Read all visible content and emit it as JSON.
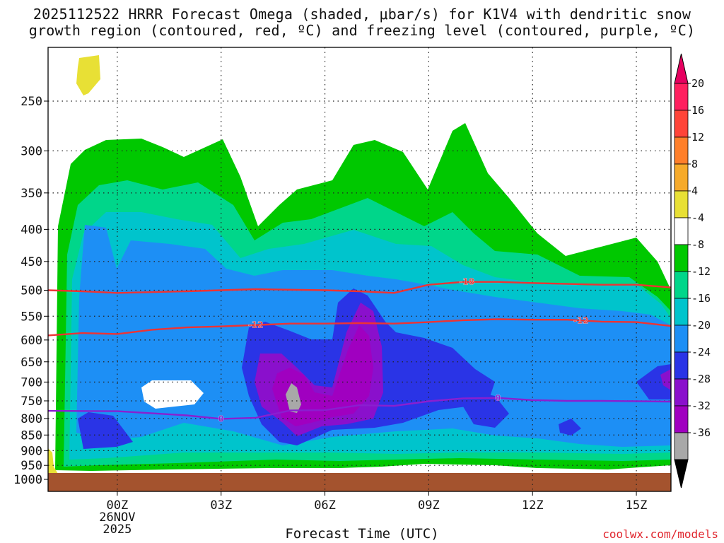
{
  "title_line1": "2025112522 HRRR Forecast Omega (shaded, μbar/s) for K1V4 with dendritic snow",
  "title_line2": "growth region (contoured, red, ºC) and freezing level (contoured, purple, ºC)",
  "credit": "coolwx.com/models",
  "chart_data": {
    "type": "time-height cross section",
    "title": "2025112522 HRRR Forecast Omega (shaded, μbar/s) for K1V4 with dendritic snow growth region (contoured, red, ºC) and freezing level (contoured, purple, ºC)",
    "xlabel": "Forecast Time (UTC)",
    "ylabel": "",
    "x_hours": [
      -2.0,
      16.0
    ],
    "x_ticks": [
      {
        "hour": 0,
        "label": "00Z",
        "sub1": "26NOV",
        "sub2": "2025"
      },
      {
        "hour": 3,
        "label": "03Z"
      },
      {
        "hour": 6,
        "label": "06Z"
      },
      {
        "hour": 9,
        "label": "09Z"
      },
      {
        "hour": 12,
        "label": "12Z"
      },
      {
        "hour": 15,
        "label": "15Z"
      }
    ],
    "y_pressure_range": [
      1000,
      200
    ],
    "y_ticks": [
      "250",
      "300",
      "350",
      "400",
      "450",
      "500",
      "550",
      "600",
      "650",
      "700",
      "750",
      "800",
      "850",
      "900",
      "950",
      "1000"
    ],
    "grid": true,
    "colorbar": {
      "labels": [
        "20",
        "16",
        "12",
        "8",
        "4",
        "-4",
        "-8",
        "-12",
        "-16",
        "-20",
        "-24",
        "-28",
        "-32",
        "-36"
      ],
      "colors": [
        "#ff1f5f",
        "#ff4438",
        "#ff7f2a",
        "#f6aa2a",
        "#e8e035",
        "#ffffff",
        "#00c800",
        "#00d68a",
        "#00c4cc",
        "#1d8ff5",
        "#2a34e6",
        "#8a10cc",
        "#a000c0",
        "#a8a8a8"
      ],
      "top_arrow": "#e6005f",
      "bottom_arrow": "#000000"
    },
    "contours": [
      {
        "label": "-18",
        "color": "#ee3333",
        "points": [
          [
            -2,
            500
          ],
          [
            -1,
            502
          ],
          [
            0,
            505
          ],
          [
            2,
            502
          ],
          [
            4,
            498
          ],
          [
            6,
            500
          ],
          [
            7,
            502
          ],
          [
            8,
            505
          ],
          [
            9,
            490
          ],
          [
            10,
            485
          ],
          [
            11,
            485
          ],
          [
            12,
            487
          ],
          [
            14,
            490
          ],
          [
            15,
            490
          ],
          [
            16,
            495
          ]
        ]
      },
      {
        "label": "-12",
        "color": "#ee3333",
        "points": [
          [
            -2,
            590
          ],
          [
            -1,
            585
          ],
          [
            0,
            587
          ],
          [
            1,
            578
          ],
          [
            2,
            573
          ],
          [
            3,
            571
          ],
          [
            5,
            565
          ],
          [
            6,
            565
          ],
          [
            7,
            564
          ],
          [
            8,
            565
          ],
          [
            9,
            562
          ],
          [
            10,
            558
          ],
          [
            11,
            556
          ],
          [
            12,
            557
          ],
          [
            13,
            557
          ],
          [
            14,
            561
          ],
          [
            15,
            562
          ],
          [
            16,
            570
          ]
        ]
      },
      {
        "label": "0",
        "color": "#8a1fd0",
        "points": [
          [
            -2,
            778
          ],
          [
            0,
            779
          ],
          [
            2,
            791
          ],
          [
            3,
            801
          ],
          [
            4,
            798
          ],
          [
            5,
            777
          ],
          [
            6,
            776
          ],
          [
            7,
            762
          ],
          [
            8,
            764
          ],
          [
            9,
            751
          ],
          [
            10,
            743
          ],
          [
            11,
            742
          ],
          [
            12,
            748
          ],
          [
            13,
            750
          ],
          [
            14,
            750
          ],
          [
            15,
            751
          ],
          [
            16,
            752
          ]
        ]
      }
    ]
  }
}
